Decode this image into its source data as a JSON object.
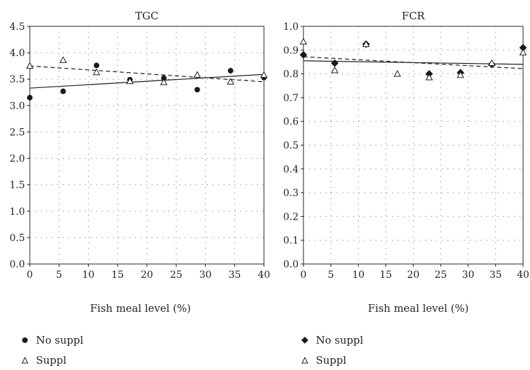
{
  "chart_data": [
    {
      "type": "scatter",
      "title": "TGC",
      "xlabel": "Fish meal level (%)",
      "ylabel": "",
      "xlim": [
        0,
        40
      ],
      "ylim": [
        0.0,
        4.5
      ],
      "xticks": [
        "0",
        "5",
        "10",
        "15",
        "20",
        "25",
        "30",
        "35",
        "40"
      ],
      "yticks": [
        "0.0",
        "0.5",
        "1.0",
        "1.5",
        "2.0",
        "2.5",
        "3.0",
        "3.5",
        "4.0",
        "4.5"
      ],
      "grid": true,
      "series": [
        {
          "name": "No suppl",
          "marker": "circle",
          "x": [
            0,
            5.7,
            11.4,
            17.1,
            22.9,
            28.6,
            34.3,
            40
          ],
          "y": [
            3.15,
            3.27,
            3.76,
            3.49,
            3.52,
            3.3,
            3.66,
            3.53
          ],
          "trend": {
            "x": [
              0,
              40
            ],
            "y": [
              3.33,
              3.59
            ],
            "style": "solid"
          }
        },
        {
          "name": "Suppl",
          "marker": "triangle",
          "x": [
            0,
            5.7,
            11.4,
            17.1,
            22.9,
            28.6,
            34.3,
            40
          ],
          "y": [
            3.75,
            3.86,
            3.63,
            3.46,
            3.44,
            3.58,
            3.45,
            3.58
          ],
          "trend": {
            "x": [
              0,
              40
            ],
            "y": [
              3.75,
              3.45
            ],
            "style": "dashed"
          }
        }
      ]
    },
    {
      "type": "scatter",
      "title": "FCR",
      "xlabel": "Fish meal level (%)",
      "ylabel": "",
      "xlim": [
        0,
        40
      ],
      "ylim": [
        0.0,
        1.0
      ],
      "xticks": [
        "0",
        "5",
        "10",
        "15",
        "20",
        "25",
        "30",
        "35",
        "40"
      ],
      "yticks": [
        "0.0",
        "0.1",
        "0.2",
        "0.3",
        "0.4",
        "0.5",
        "0.6",
        "0.7",
        "0.8",
        "0.9",
        "1.0"
      ],
      "grid": true,
      "series": [
        {
          "name": "No suppl",
          "marker": "diamond",
          "x": [
            0,
            5.7,
            11.4,
            22.9,
            28.6,
            34.3,
            40
          ],
          "y": [
            0.88,
            0.845,
            0.925,
            0.8,
            0.805,
            0.84,
            0.91
          ],
          "trend": {
            "x": [
              0,
              40
            ],
            "y": [
              0.855,
              0.84
            ],
            "style": "solid"
          }
        },
        {
          "name": "Suppl",
          "marker": "triangle",
          "x": [
            0,
            5.7,
            11.4,
            17.1,
            22.9,
            28.6,
            34.3,
            40
          ],
          "y": [
            0.935,
            0.815,
            0.925,
            0.8,
            0.785,
            0.795,
            0.845,
            0.89
          ],
          "trend": {
            "x": [
              0,
              40
            ],
            "y": [
              0.872,
              0.822
            ],
            "style": "dashed"
          }
        }
      ]
    }
  ]
}
